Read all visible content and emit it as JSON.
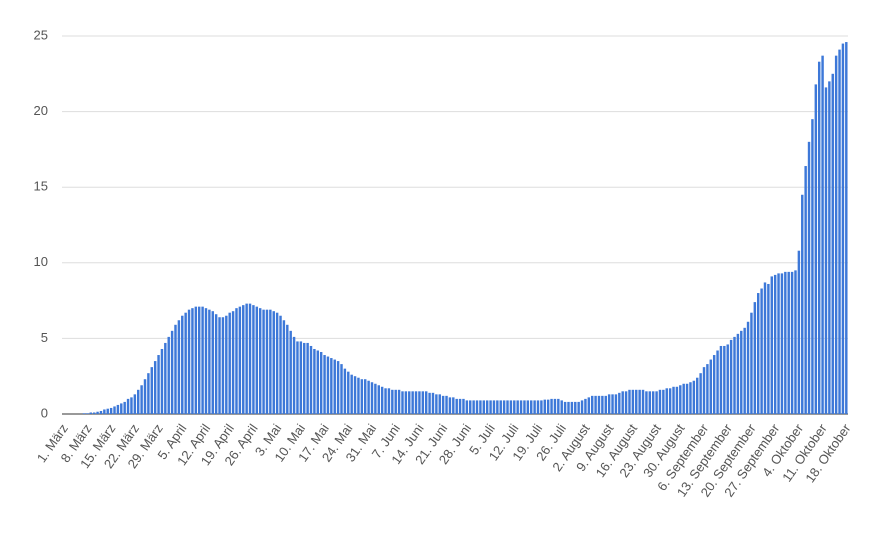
{
  "chart_data": {
    "type": "bar",
    "color": "#3d78d8",
    "grid": true,
    "ylim": [
      0,
      25
    ],
    "yticks": [
      0,
      5,
      10,
      15,
      20,
      25
    ],
    "categories": [
      "1. März",
      null,
      null,
      null,
      null,
      null,
      null,
      "8. März",
      null,
      null,
      null,
      null,
      null,
      null,
      "15. März",
      null,
      null,
      null,
      null,
      null,
      null,
      "22. März",
      null,
      null,
      null,
      null,
      null,
      null,
      "29. März",
      null,
      null,
      null,
      null,
      null,
      null,
      "5. April",
      null,
      null,
      null,
      null,
      null,
      null,
      "12. April",
      null,
      null,
      null,
      null,
      null,
      null,
      "19. April",
      null,
      null,
      null,
      null,
      null,
      null,
      "26. April",
      null,
      null,
      null,
      null,
      null,
      null,
      "3. Mai",
      null,
      null,
      null,
      null,
      null,
      null,
      "10. Mai",
      null,
      null,
      null,
      null,
      null,
      null,
      "17. Mai",
      null,
      null,
      null,
      null,
      null,
      null,
      "24. Mai",
      null,
      null,
      null,
      null,
      null,
      null,
      "31. Mai",
      null,
      null,
      null,
      null,
      null,
      null,
      "7. Juni",
      null,
      null,
      null,
      null,
      null,
      null,
      "14. Juni",
      null,
      null,
      null,
      null,
      null,
      null,
      "21. Juni",
      null,
      null,
      null,
      null,
      null,
      null,
      "28. Juni",
      null,
      null,
      null,
      null,
      null,
      null,
      "5. Juli",
      null,
      null,
      null,
      null,
      null,
      null,
      "12. Juli",
      null,
      null,
      null,
      null,
      null,
      null,
      "19. Juli",
      null,
      null,
      null,
      null,
      null,
      null,
      "26. Juli",
      null,
      null,
      null,
      null,
      null,
      null,
      "2. August",
      null,
      null,
      null,
      null,
      null,
      null,
      "9. August",
      null,
      null,
      null,
      null,
      null,
      null,
      "16. August",
      null,
      null,
      null,
      null,
      null,
      null,
      "23. August",
      null,
      null,
      null,
      null,
      null,
      null,
      "30. August",
      null,
      null,
      null,
      null,
      null,
      null,
      "6. September",
      null,
      null,
      null,
      null,
      null,
      null,
      "13. September",
      null,
      null,
      null,
      null,
      null,
      null,
      "20. September",
      null,
      null,
      null,
      null,
      null,
      null,
      "27. September",
      null,
      null,
      null,
      null,
      null,
      null,
      "4. Oktober",
      null,
      null,
      null,
      null,
      null,
      null,
      "11. Oktober",
      null,
      null,
      null,
      null,
      null,
      null,
      "18. Oktober"
    ],
    "values": [
      0,
      0,
      0,
      0,
      0,
      0,
      0.05,
      0.05,
      0.1,
      0.1,
      0.15,
      0.2,
      0.3,
      0.35,
      0.4,
      0.5,
      0.6,
      0.7,
      0.8,
      1.0,
      1.1,
      1.3,
      1.6,
      1.9,
      2.3,
      2.7,
      3.1,
      3.5,
      3.9,
      4.3,
      4.7,
      5.1,
      5.5,
      5.9,
      6.2,
      6.5,
      6.7,
      6.9,
      7.0,
      7.1,
      7.1,
      7.1,
      7.0,
      6.9,
      6.8,
      6.6,
      6.4,
      6.4,
      6.5,
      6.7,
      6.8,
      7.0,
      7.1,
      7.2,
      7.3,
      7.3,
      7.2,
      7.1,
      7.0,
      6.9,
      6.9,
      6.9,
      6.8,
      6.7,
      6.5,
      6.2,
      5.9,
      5.5,
      5.1,
      4.8,
      4.8,
      4.7,
      4.7,
      4.5,
      4.3,
      4.2,
      4.1,
      3.9,
      3.8,
      3.7,
      3.6,
      3.5,
      3.3,
      3.0,
      2.8,
      2.6,
      2.5,
      2.4,
      2.3,
      2.3,
      2.2,
      2.1,
      2.0,
      1.9,
      1.8,
      1.7,
      1.7,
      1.6,
      1.6,
      1.6,
      1.5,
      1.5,
      1.5,
      1.5,
      1.5,
      1.5,
      1.5,
      1.5,
      1.4,
      1.4,
      1.3,
      1.3,
      1.2,
      1.2,
      1.1,
      1.1,
      1.0,
      1.0,
      1.0,
      0.9,
      0.9,
      0.9,
      0.9,
      0.9,
      0.9,
      0.9,
      0.9,
      0.9,
      0.9,
      0.9,
      0.9,
      0.9,
      0.9,
      0.9,
      0.9,
      0.9,
      0.9,
      0.9,
      0.9,
      0.9,
      0.9,
      0.9,
      0.95,
      0.95,
      1.0,
      1.0,
      1.0,
      0.9,
      0.8,
      0.8,
      0.8,
      0.8,
      0.8,
      0.9,
      1.0,
      1.1,
      1.2,
      1.2,
      1.2,
      1.2,
      1.2,
      1.3,
      1.3,
      1.3,
      1.4,
      1.5,
      1.5,
      1.6,
      1.6,
      1.6,
      1.6,
      1.6,
      1.5,
      1.5,
      1.5,
      1.5,
      1.6,
      1.6,
      1.7,
      1.7,
      1.8,
      1.8,
      1.9,
      2.0,
      2.0,
      2.1,
      2.2,
      2.4,
      2.7,
      3.1,
      3.3,
      3.6,
      3.9,
      4.2,
      4.5,
      4.5,
      4.6,
      4.9,
      5.1,
      5.3,
      5.5,
      5.7,
      6.1,
      6.7,
      7.4,
      8.0,
      8.3,
      8.7,
      8.6,
      9.1,
      9.2,
      9.3,
      9.3,
      9.4,
      9.4,
      9.4,
      9.5,
      10.8,
      14.5,
      16.4,
      18.0,
      19.5,
      21.8,
      23.3,
      23.7,
      21.6,
      22.0,
      22.5,
      23.7,
      24.1,
      24.5,
      24.6
    ]
  }
}
